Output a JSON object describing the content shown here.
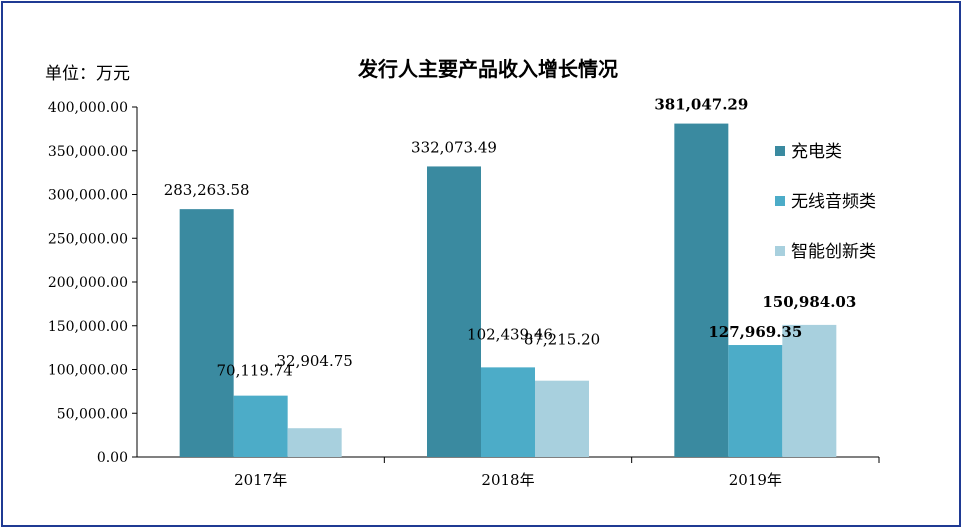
{
  "chart_data": {
    "type": "bar",
    "title": "发行人主要产品收入增长情况",
    "unit_label": "单位：万元",
    "categories": [
      "2017年",
      "2018年",
      "2019年"
    ],
    "series": [
      {
        "name": "充电类",
        "color": "#3a8aa0",
        "values": [
          283263.58,
          332073.49,
          381047.29
        ],
        "labels": [
          "283,263.58",
          "332,073.49",
          "381,047.29"
        ]
      },
      {
        "name": "无线音频类",
        "color": "#4cacc8",
        "values": [
          70119.74,
          102439.46,
          127969.35
        ],
        "labels": [
          "70,119.74",
          "102,439.46",
          "127,969.35"
        ]
      },
      {
        "name": "智能创新类",
        "color": "#a8d0de",
        "values": [
          32904.75,
          87215.2,
          150984.03
        ],
        "labels": [
          "32,904.75",
          "87,215.20",
          "150,984.03"
        ]
      }
    ],
    "ylim": [
      0,
      400000
    ],
    "yticks": [
      "0.00",
      "50,000.00",
      "100,000.00",
      "150,000.00",
      "200,000.00",
      "250,000.00",
      "300,000.00",
      "350,000.00",
      "400,000.00"
    ],
    "grid": false,
    "legend": "right"
  }
}
